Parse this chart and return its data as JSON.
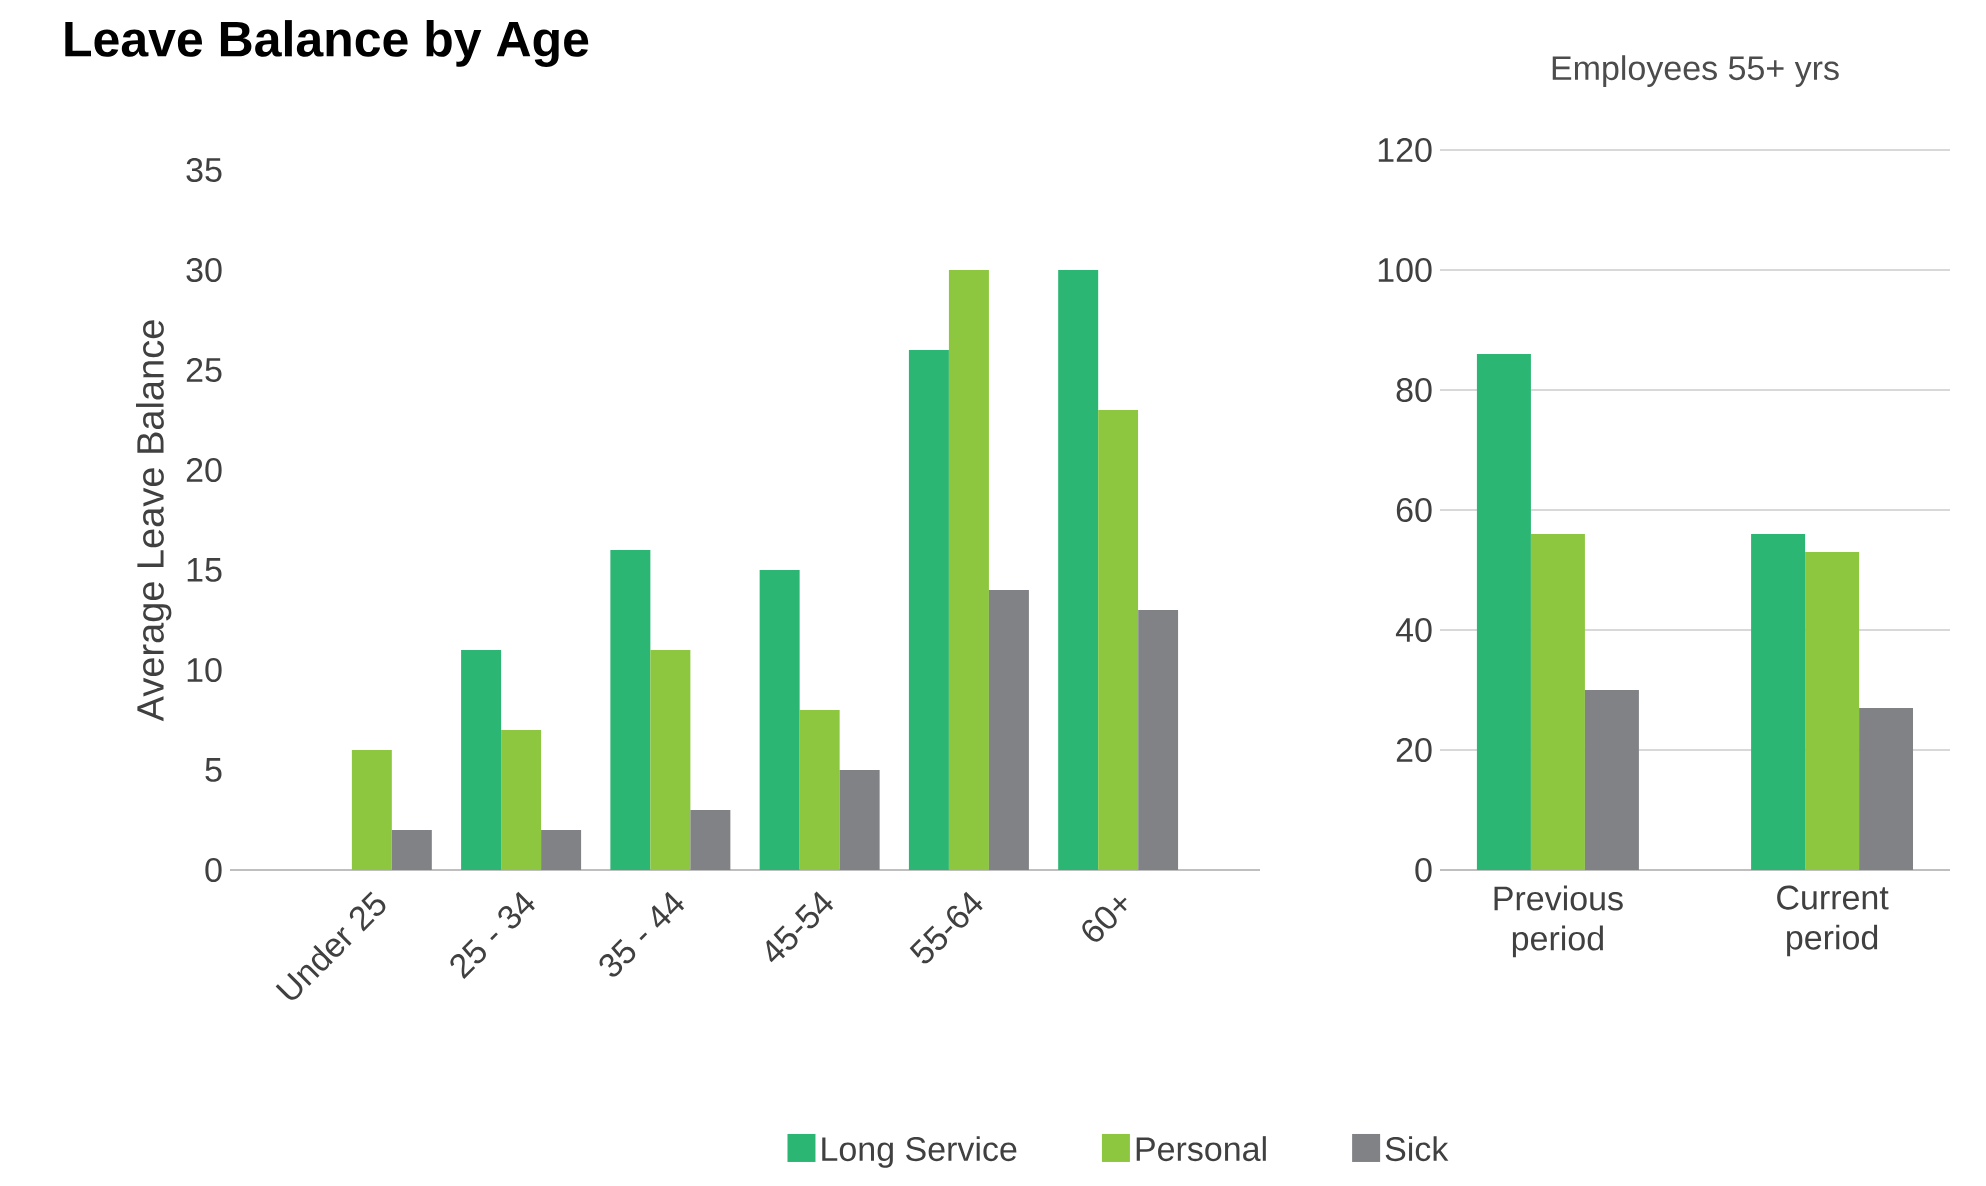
{
  "chart_data": [
    {
      "type": "bar",
      "title": "Leave Balance by Age",
      "ylabel": "Average Leave Balance",
      "categories": [
        "Under 25",
        "25 - 34",
        "35 - 44",
        "45-54",
        "55-64",
        "60+"
      ],
      "ylim": [
        0,
        35
      ],
      "yticks": [
        0,
        5,
        10,
        15,
        20,
        25,
        30,
        35
      ],
      "legend": "bottom",
      "series": [
        {
          "name": "Long Service",
          "color": "#2bb673",
          "values": [
            null,
            11,
            16,
            15,
            26,
            30
          ]
        },
        {
          "name": "Personal",
          "color": "#8dc63f",
          "values": [
            6,
            7,
            11,
            8,
            30,
            23
          ]
        },
        {
          "name": "Sick",
          "color": "#808285",
          "values": [
            2,
            2,
            3,
            5,
            14,
            13
          ]
        }
      ]
    },
    {
      "type": "bar",
      "title": "Employees 55+ yrs",
      "categories": [
        "Previous period",
        "Current period"
      ],
      "ylim": [
        0,
        120
      ],
      "yticks": [
        0,
        20,
        40,
        60,
        80,
        100,
        120
      ],
      "grid": "y",
      "series": [
        {
          "color": "#2bb673",
          "values": [
            86,
            56
          ]
        },
        {
          "color": "#8dc63f",
          "values": [
            56,
            53
          ]
        },
        {
          "color": "#808285",
          "values": [
            30,
            27
          ]
        }
      ]
    }
  ]
}
